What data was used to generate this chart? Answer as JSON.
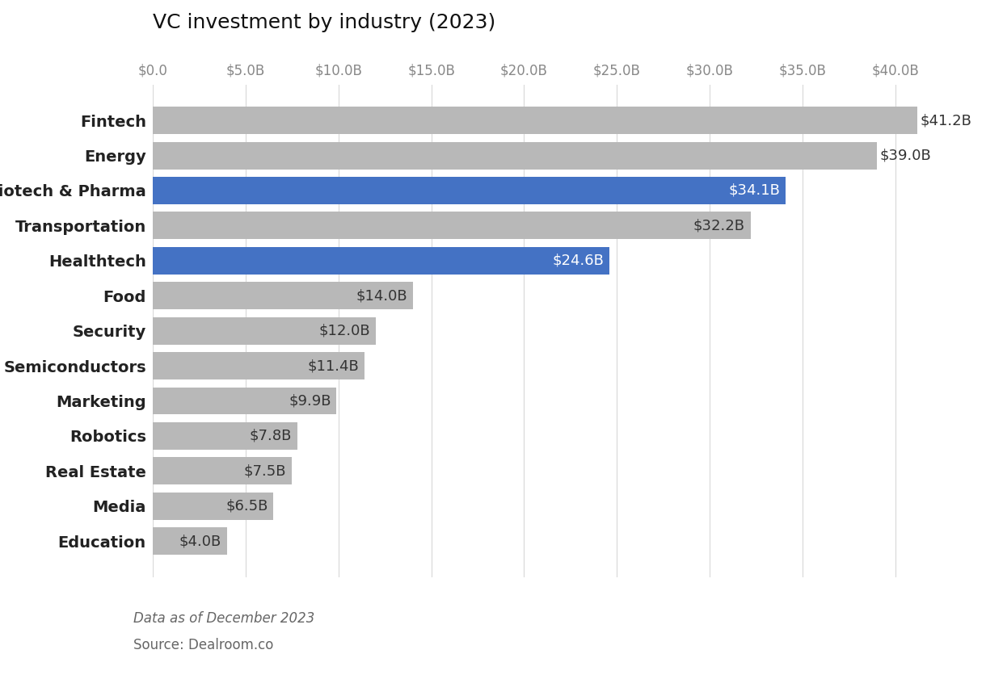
{
  "title": "VC investment by industry (2023)",
  "categories": [
    "Fintech",
    "Energy",
    "Biotech & Pharma",
    "Transportation",
    "Healthtech",
    "Food",
    "Security",
    "Semiconductors",
    "Marketing",
    "Robotics",
    "Real Estate",
    "Media",
    "Education"
  ],
  "values": [
    41.2,
    39.0,
    34.1,
    32.2,
    24.6,
    14.0,
    12.0,
    11.4,
    9.9,
    7.8,
    7.5,
    6.5,
    4.0
  ],
  "bar_colors": [
    "#b8b8b8",
    "#b8b8b8",
    "#4472c4",
    "#b8b8b8",
    "#4472c4",
    "#b8b8b8",
    "#b8b8b8",
    "#b8b8b8",
    "#b8b8b8",
    "#b8b8b8",
    "#b8b8b8",
    "#b8b8b8",
    "#b8b8b8"
  ],
  "labels": [
    "$41.2B",
    "$39.0B",
    "$34.1B",
    "$32.2B",
    "$24.6B",
    "$14.0B",
    "$12.0B",
    "$11.4B",
    "$9.9B",
    "$7.8B",
    "$7.5B",
    "$6.5B",
    "$4.0B"
  ],
  "label_colors": [
    "#333333",
    "#333333",
    "#ffffff",
    "#333333",
    "#ffffff",
    "#333333",
    "#333333",
    "#333333",
    "#333333",
    "#333333",
    "#333333",
    "#333333",
    "#333333"
  ],
  "label_outside": [
    true,
    true,
    false,
    false,
    false,
    false,
    false,
    false,
    false,
    false,
    false,
    false,
    false
  ],
  "xlim": [
    0,
    42.5
  ],
  "xticks": [
    0,
    5,
    10,
    15,
    20,
    25,
    30,
    35,
    40
  ],
  "xtick_labels": [
    "$0.0",
    "$5.0B",
    "$10.0B",
    "$15.0B",
    "$20.0B",
    "$25.0B",
    "$30.0B",
    "$35.0B",
    "$40.0B"
  ],
  "footnote1": "Data as of December 2023",
  "footnote2": "Source: Dealroom.co",
  "background_color": "#ffffff",
  "grid_color": "#d8d8d8",
  "bar_height": 0.78,
  "label_fontsize": 13,
  "tick_fontsize": 12,
  "title_fontsize": 18,
  "footnote_fontsize": 12,
  "category_fontsize": 14
}
